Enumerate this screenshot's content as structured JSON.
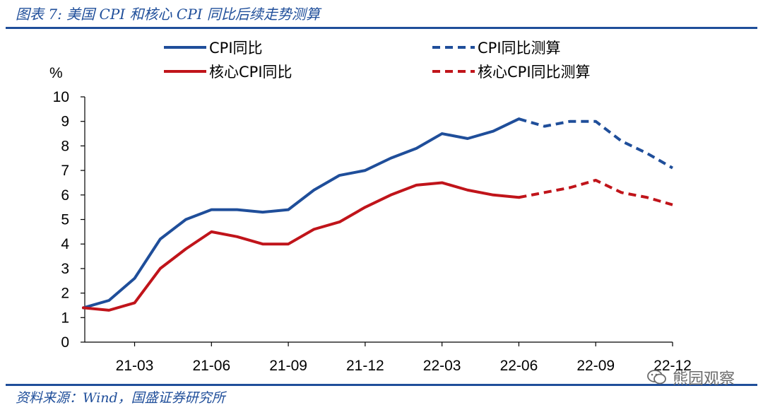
{
  "figure": {
    "title": "图表 7:  美国 CPI 和核心 CPI 同比后续走势测算",
    "source": "资料来源：Wind，国盛证券研究所",
    "watermark": "熊园观察"
  },
  "chart_data": {
    "type": "line",
    "ylabel": "%",
    "ylim": [
      0,
      10
    ],
    "yticks": [
      "0",
      "1",
      "2",
      "3",
      "4",
      "5",
      "6",
      "7",
      "8",
      "9",
      "10"
    ],
    "x": [
      "21-01",
      "21-02",
      "21-03",
      "21-04",
      "21-05",
      "21-06",
      "21-07",
      "21-08",
      "21-09",
      "21-10",
      "21-11",
      "21-12",
      "22-01",
      "22-02",
      "22-03",
      "22-04",
      "22-05",
      "22-06",
      "22-07",
      "22-08",
      "22-09",
      "22-10",
      "22-11",
      "22-12"
    ],
    "xtick_labels": [
      "21-03",
      "21-06",
      "21-09",
      "21-12",
      "22-03",
      "22-06",
      "22-09",
      "22-12"
    ],
    "legend_placement": "top",
    "grid": false,
    "series": [
      {
        "name": "CPI同比",
        "color": "#1f4e9a",
        "dash": false,
        "x": [
          "21-01",
          "21-02",
          "21-03",
          "21-04",
          "21-05",
          "21-06",
          "21-07",
          "21-08",
          "21-09",
          "21-10",
          "21-11",
          "21-12",
          "22-01",
          "22-02",
          "22-03",
          "22-04",
          "22-05",
          "22-06"
        ],
        "values": [
          1.4,
          1.7,
          2.6,
          4.2,
          5.0,
          5.4,
          5.4,
          5.3,
          5.4,
          6.2,
          6.8,
          7.0,
          7.5,
          7.9,
          8.5,
          8.3,
          8.6,
          9.1
        ]
      },
      {
        "name": "核心CPI同比",
        "color": "#c0141a",
        "dash": false,
        "x": [
          "21-01",
          "21-02",
          "21-03",
          "21-04",
          "21-05",
          "21-06",
          "21-07",
          "21-08",
          "21-09",
          "21-10",
          "21-11",
          "21-12",
          "22-01",
          "22-02",
          "22-03",
          "22-04",
          "22-05",
          "22-06"
        ],
        "values": [
          1.4,
          1.3,
          1.6,
          3.0,
          3.8,
          4.5,
          4.3,
          4.0,
          4.0,
          4.6,
          4.9,
          5.5,
          6.0,
          6.4,
          6.5,
          6.2,
          6.0,
          5.9
        ]
      },
      {
        "name": "CPI同比测算",
        "color": "#1f4e9a",
        "dash": true,
        "x": [
          "22-06",
          "22-07",
          "22-08",
          "22-09",
          "22-10",
          "22-11",
          "22-12"
        ],
        "values": [
          9.1,
          8.8,
          9.0,
          9.0,
          8.2,
          7.7,
          7.1
        ]
      },
      {
        "name": "核心CPI同比测算",
        "color": "#c0141a",
        "dash": true,
        "x": [
          "22-06",
          "22-07",
          "22-08",
          "22-09",
          "22-10",
          "22-11",
          "22-12"
        ],
        "values": [
          5.9,
          6.1,
          6.3,
          6.6,
          6.1,
          5.9,
          5.6
        ]
      }
    ]
  }
}
